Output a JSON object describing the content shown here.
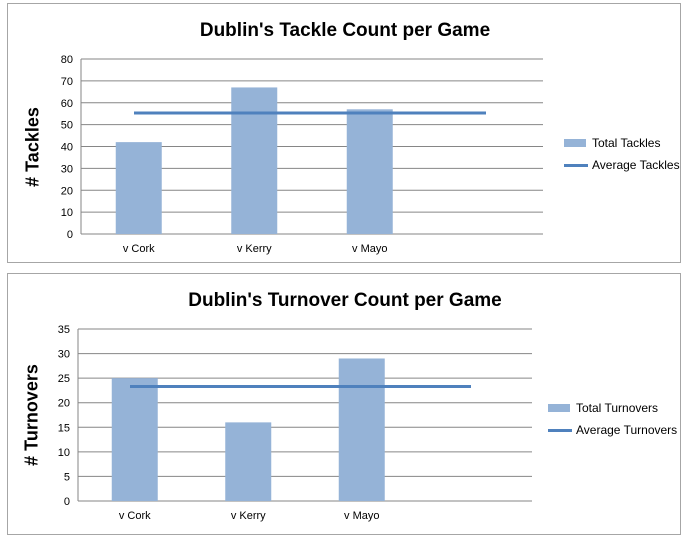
{
  "chart_data": [
    {
      "type": "bar",
      "title": "Dublin's Tackle Count per Game",
      "ylabel": "# Tackles",
      "xlabel": "",
      "categories": [
        "v Cork",
        "v Kerry",
        "v Mayo"
      ],
      "ylim": [
        0,
        80
      ],
      "yticks": [
        0,
        10,
        20,
        30,
        40,
        50,
        60,
        70,
        80
      ],
      "grid": true,
      "legend_position": "right",
      "series": [
        {
          "name": "Total Tackles",
          "kind": "bar",
          "values": [
            42,
            67,
            57
          ],
          "color": "#95b3d7"
        },
        {
          "name": "Average Tackles",
          "kind": "line",
          "value": 55.3,
          "color": "#4f81bd"
        }
      ]
    },
    {
      "type": "bar",
      "title": "Dublin's Turnover Count per Game",
      "ylabel": "# Turnovers",
      "xlabel": "",
      "categories": [
        "v Cork",
        "v Kerry",
        "v Mayo"
      ],
      "ylim": [
        0,
        35
      ],
      "yticks": [
        0,
        5,
        10,
        15,
        20,
        25,
        30,
        35
      ],
      "grid": true,
      "legend_position": "right",
      "series": [
        {
          "name": "Total Turnovers",
          "kind": "bar",
          "values": [
            25,
            16,
            29
          ],
          "color": "#95b3d7"
        },
        {
          "name": "Average Turnovers",
          "kind": "line",
          "value": 23.3,
          "color": "#4f81bd"
        }
      ]
    }
  ]
}
